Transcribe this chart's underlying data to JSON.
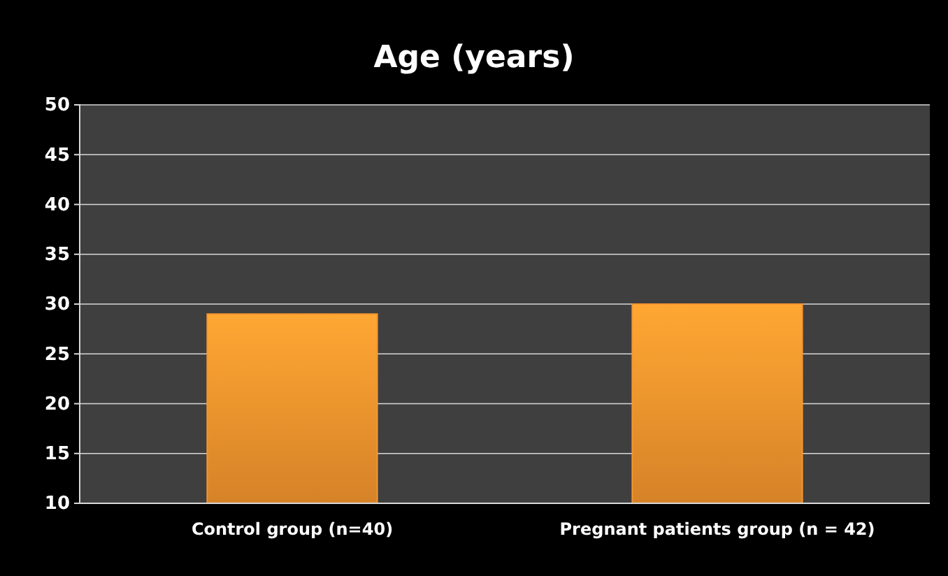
{
  "chart_data": {
    "type": "bar",
    "title": "Age (years)",
    "categories": [
      "Control group (n=40)",
      "Pregnant patients group (n = 42)"
    ],
    "values": [
      29,
      30
    ],
    "color": "#f7962e",
    "ylim": [
      10,
      50
    ],
    "yticks": [
      10,
      15,
      20,
      25,
      30,
      35,
      40,
      45,
      50
    ],
    "grid": "y"
  }
}
